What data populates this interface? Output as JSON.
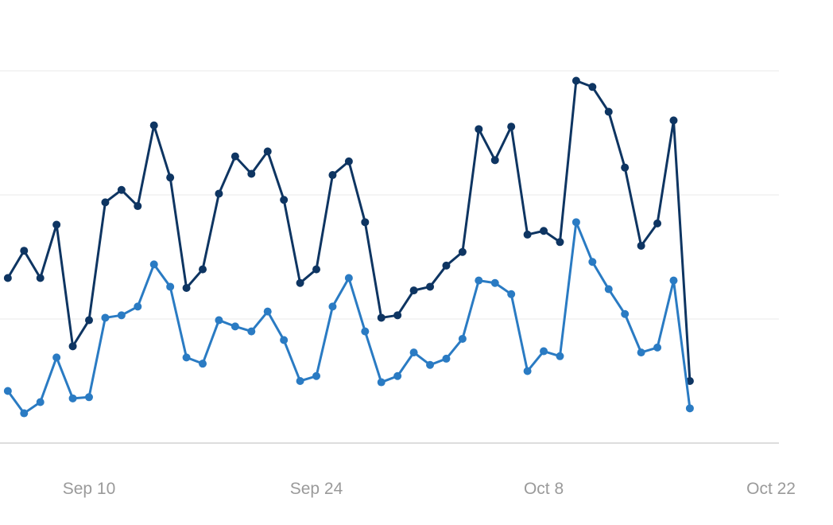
{
  "chart_data": {
    "type": "line",
    "title": "",
    "xlabel": "",
    "ylabel": "",
    "x_ticks": [
      "Sep 10",
      "Sep 24",
      "Oct 8",
      "Oct 22"
    ],
    "x_tick_dates": [
      "2000-09-10",
      "2000-09-24",
      "2000-10-08",
      "2000-10-22"
    ],
    "x_start": "2000-09-05",
    "x_step_days": 1,
    "ylim": [
      0,
      300
    ],
    "y_gridlines": [
      0,
      100,
      200,
      300
    ],
    "y_tick_labels_shown": false,
    "grid": "horizontal",
    "legend": "none",
    "series": [
      {
        "color": "#0e3562",
        "values": [
          133,
          155,
          133,
          176,
          78,
          99,
          194,
          204,
          191,
          256,
          214,
          125,
          140,
          201,
          231,
          217,
          235,
          196,
          129,
          140,
          216,
          227,
          178,
          101,
          103,
          123,
          126,
          143,
          154,
          253,
          228,
          255,
          168,
          171,
          162,
          292,
          287,
          267,
          222,
          159,
          177,
          260,
          50
        ]
      },
      {
        "color": "#2a7bc3",
        "values": [
          42,
          24,
          33,
          69,
          36,
          37,
          101,
          103,
          110,
          144,
          126,
          69,
          64,
          99,
          94,
          90,
          106,
          83,
          50,
          54,
          110,
          133,
          90,
          49,
          54,
          73,
          63,
          68,
          84,
          131,
          129,
          120,
          58,
          74,
          70,
          178,
          146,
          124,
          104,
          73,
          77,
          131,
          28
        ]
      }
    ]
  }
}
